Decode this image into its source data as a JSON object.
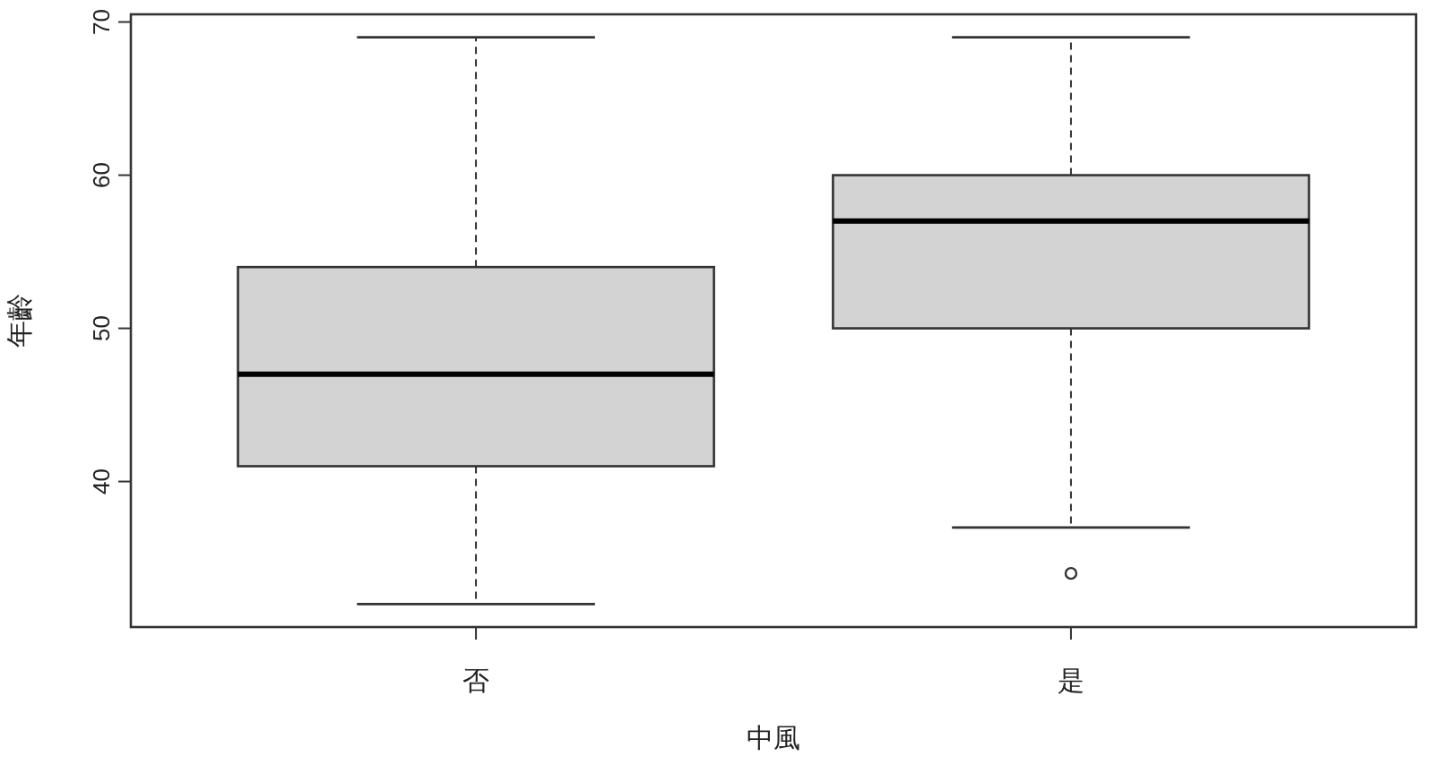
{
  "chart_data": {
    "type": "box",
    "xlabel": "中風",
    "ylabel": "年齡",
    "categories": [
      "否",
      "是"
    ],
    "ylim": [
      30.5,
      70.5
    ],
    "yticks": [
      40,
      50,
      60,
      70
    ],
    "series": [
      {
        "color": "#d3d3d3",
        "boxes": [
          {
            "low": 32,
            "q1": 41,
            "median": 47,
            "q3": 54,
            "high": 69
          },
          {
            "low": 37,
            "q1": 50,
            "median": 57,
            "q3": 60,
            "high": 69,
            "outliers": [
              34
            ]
          }
        ]
      }
    ]
  }
}
